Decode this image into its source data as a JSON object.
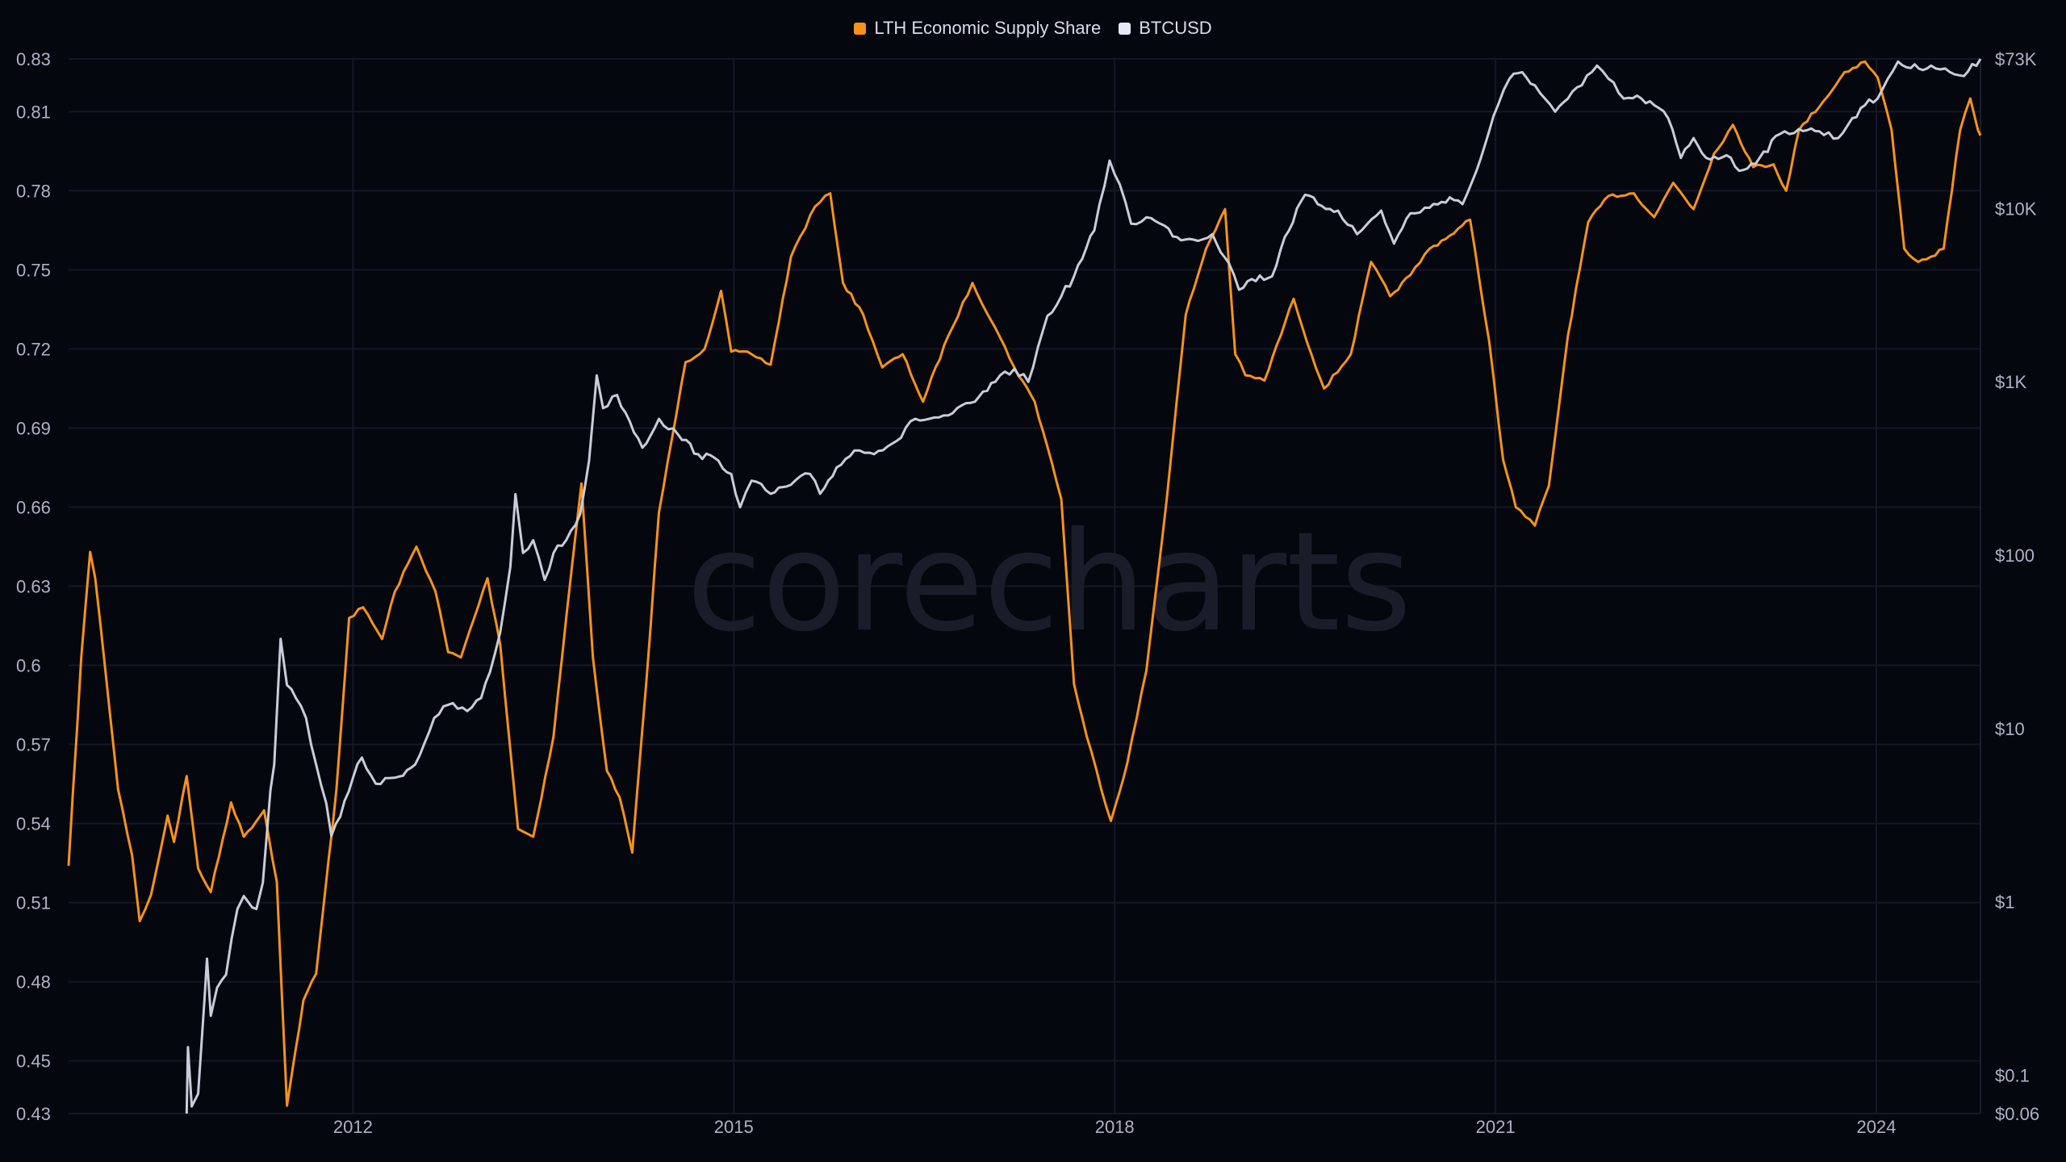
{
  "watermark": "corecharts",
  "chart_data": {
    "type": "line",
    "legend_placement": "top-center",
    "grid": true,
    "x_range": [
      2009.76,
      2024.82
    ],
    "x_ticks": [
      {
        "value": 2012,
        "label": "2012"
      },
      {
        "value": 2015,
        "label": "2015"
      },
      {
        "value": 2018,
        "label": "2018"
      },
      {
        "value": 2021,
        "label": "2021"
      },
      {
        "value": 2024,
        "label": "2024"
      }
    ],
    "y_left": {
      "range": [
        0.43,
        0.83
      ],
      "scale": "linear",
      "ticks": [
        "0.83",
        "0.81",
        "0.78",
        "0.75",
        "0.72",
        "0.69",
        "0.66",
        "0.63",
        "0.6",
        "0.57",
        "0.54",
        "0.51",
        "0.48",
        "0.45",
        "0.43"
      ]
    },
    "y_right": {
      "range": [
        0.06,
        73000
      ],
      "scale": "log",
      "ticks": [
        {
          "value": 73000,
          "label": "$73K"
        },
        {
          "value": 10000,
          "label": "$10K"
        },
        {
          "value": 1000,
          "label": "$1K"
        },
        {
          "value": 100,
          "label": "$100"
        },
        {
          "value": 10,
          "label": "$10"
        },
        {
          "value": 1,
          "label": "$1"
        },
        {
          "value": 0.1,
          "label": "$0.1"
        },
        {
          "value": 0.06,
          "label": "$0.06"
        }
      ]
    },
    "series": [
      {
        "name": "LTH Economic Supply Share",
        "axis": "left",
        "color": "#f7931a",
        "points": [
          [
            2009.76,
            0.524
          ],
          [
            2009.86,
            0.603
          ],
          [
            2009.93,
            0.643
          ],
          [
            2009.97,
            0.633
          ],
          [
            2010.05,
            0.598
          ],
          [
            2010.15,
            0.553
          ],
          [
            2010.26,
            0.528
          ],
          [
            2010.32,
            0.503
          ],
          [
            2010.41,
            0.513
          ],
          [
            2010.54,
            0.543
          ],
          [
            2010.59,
            0.533
          ],
          [
            2010.69,
            0.558
          ],
          [
            2010.78,
            0.523
          ],
          [
            2010.88,
            0.514
          ],
          [
            2011.04,
            0.548
          ],
          [
            2011.14,
            0.535
          ],
          [
            2011.3,
            0.545
          ],
          [
            2011.4,
            0.518
          ],
          [
            2011.48,
            0.433
          ],
          [
            2011.61,
            0.473
          ],
          [
            2011.71,
            0.483
          ],
          [
            2011.87,
            0.553
          ],
          [
            2011.97,
            0.618
          ],
          [
            2012.08,
            0.622
          ],
          [
            2012.23,
            0.61
          ],
          [
            2012.33,
            0.628
          ],
          [
            2012.5,
            0.645
          ],
          [
            2012.65,
            0.628
          ],
          [
            2012.75,
            0.605
          ],
          [
            2012.85,
            0.603
          ],
          [
            2013.06,
            0.633
          ],
          [
            2013.16,
            0.608
          ],
          [
            2013.3,
            0.538
          ],
          [
            2013.42,
            0.535
          ],
          [
            2013.58,
            0.573
          ],
          [
            2013.68,
            0.618
          ],
          [
            2013.8,
            0.669
          ],
          [
            2013.89,
            0.603
          ],
          [
            2014.0,
            0.56
          ],
          [
            2014.1,
            0.55
          ],
          [
            2014.2,
            0.529
          ],
          [
            2014.31,
            0.593
          ],
          [
            2014.41,
            0.658
          ],
          [
            2014.62,
            0.715
          ],
          [
            2014.77,
            0.72
          ],
          [
            2014.9,
            0.742
          ],
          [
            2014.98,
            0.719
          ],
          [
            2015.14,
            0.718
          ],
          [
            2015.29,
            0.714
          ],
          [
            2015.45,
            0.755
          ],
          [
            2015.64,
            0.774
          ],
          [
            2015.76,
            0.779
          ],
          [
            2015.86,
            0.745
          ],
          [
            2016.02,
            0.733
          ],
          [
            2016.17,
            0.713
          ],
          [
            2016.33,
            0.718
          ],
          [
            2016.49,
            0.7
          ],
          [
            2016.69,
            0.725
          ],
          [
            2016.88,
            0.745
          ],
          [
            2017.06,
            0.728
          ],
          [
            2017.21,
            0.713
          ],
          [
            2017.37,
            0.7
          ],
          [
            2017.47,
            0.683
          ],
          [
            2017.58,
            0.663
          ],
          [
            2017.68,
            0.593
          ],
          [
            2017.78,
            0.573
          ],
          [
            2017.97,
            0.541
          ],
          [
            2018.1,
            0.563
          ],
          [
            2018.25,
            0.598
          ],
          [
            2018.41,
            0.663
          ],
          [
            2018.56,
            0.733
          ],
          [
            2018.72,
            0.758
          ],
          [
            2018.87,
            0.773
          ],
          [
            2018.95,
            0.718
          ],
          [
            2019.03,
            0.71
          ],
          [
            2019.18,
            0.708
          ],
          [
            2019.41,
            0.739
          ],
          [
            2019.55,
            0.718
          ],
          [
            2019.65,
            0.705
          ],
          [
            2019.86,
            0.718
          ],
          [
            2020.02,
            0.753
          ],
          [
            2020.17,
            0.74
          ],
          [
            2020.33,
            0.748
          ],
          [
            2020.48,
            0.758
          ],
          [
            2020.64,
            0.763
          ],
          [
            2020.8,
            0.769
          ],
          [
            2020.95,
            0.723
          ],
          [
            2021.06,
            0.678
          ],
          [
            2021.16,
            0.66
          ],
          [
            2021.31,
            0.653
          ],
          [
            2021.42,
            0.668
          ],
          [
            2021.57,
            0.725
          ],
          [
            2021.73,
            0.768
          ],
          [
            2021.89,
            0.778
          ],
          [
            2022.09,
            0.779
          ],
          [
            2022.25,
            0.77
          ],
          [
            2022.4,
            0.783
          ],
          [
            2022.56,
            0.773
          ],
          [
            2022.72,
            0.794
          ],
          [
            2022.87,
            0.805
          ],
          [
            2023.03,
            0.789
          ],
          [
            2023.19,
            0.79
          ],
          [
            2023.29,
            0.78
          ],
          [
            2023.39,
            0.803
          ],
          [
            2023.65,
            0.818
          ],
          [
            2023.75,
            0.825
          ],
          [
            2023.91,
            0.829
          ],
          [
            2024.01,
            0.823
          ],
          [
            2024.12,
            0.803
          ],
          [
            2024.22,
            0.758
          ],
          [
            2024.33,
            0.753
          ],
          [
            2024.43,
            0.755
          ],
          [
            2024.53,
            0.758
          ],
          [
            2024.66,
            0.803
          ],
          [
            2024.74,
            0.815
          ],
          [
            2024.8,
            0.803
          ],
          [
            2024.82,
            0.801
          ]
        ]
      },
      {
        "name": "BTCUSD",
        "axis": "right",
        "color": "#c9cdd8",
        "points": [
          [
            2010.69,
            0.06
          ],
          [
            2010.7,
            0.145
          ],
          [
            2010.73,
            0.066
          ],
          [
            2010.78,
            0.078
          ],
          [
            2010.83,
            0.27
          ],
          [
            2010.85,
            0.47
          ],
          [
            2010.88,
            0.22
          ],
          [
            2010.93,
            0.32
          ],
          [
            2011.0,
            0.38
          ],
          [
            2011.09,
            0.91
          ],
          [
            2011.14,
            1.08
          ],
          [
            2011.24,
            0.91
          ],
          [
            2011.29,
            1.29
          ],
          [
            2011.35,
            4.4
          ],
          [
            2011.38,
            6.2
          ],
          [
            2011.43,
            32.9
          ],
          [
            2011.48,
            17.8
          ],
          [
            2011.55,
            15.0
          ],
          [
            2011.63,
            11.5
          ],
          [
            2011.71,
            6.2
          ],
          [
            2011.79,
            3.7
          ],
          [
            2011.83,
            2.4
          ],
          [
            2011.9,
            3.1
          ],
          [
            2012.0,
            5.2
          ],
          [
            2012.07,
            6.8
          ],
          [
            2012.18,
            4.8
          ],
          [
            2012.33,
            5.2
          ],
          [
            2012.49,
            6.2
          ],
          [
            2012.64,
            11.5
          ],
          [
            2012.75,
            13.7
          ],
          [
            2012.9,
            12.6
          ],
          [
            2013.01,
            15.0
          ],
          [
            2013.08,
            21.2
          ],
          [
            2013.16,
            35.9
          ],
          [
            2013.24,
            86
          ],
          [
            2013.28,
            225
          ],
          [
            2013.34,
            103
          ],
          [
            2013.42,
            122
          ],
          [
            2013.51,
            72
          ],
          [
            2013.58,
            103
          ],
          [
            2013.68,
            122
          ],
          [
            2013.79,
            173
          ],
          [
            2013.86,
            350
          ],
          [
            2013.92,
            1090
          ],
          [
            2013.97,
            705
          ],
          [
            2014.08,
            840
          ],
          [
            2014.18,
            592
          ],
          [
            2014.28,
            417
          ],
          [
            2014.41,
            612
          ],
          [
            2014.56,
            497
          ],
          [
            2014.72,
            382
          ],
          [
            2014.88,
            350
          ],
          [
            2014.98,
            294
          ],
          [
            2015.05,
            189
          ],
          [
            2015.14,
            269
          ],
          [
            2015.29,
            226
          ],
          [
            2015.45,
            255
          ],
          [
            2015.6,
            294
          ],
          [
            2015.68,
            226
          ],
          [
            2015.81,
            321
          ],
          [
            2015.95,
            402
          ],
          [
            2016.07,
            390
          ],
          [
            2016.28,
            455
          ],
          [
            2016.43,
            612
          ],
          [
            2016.54,
            612
          ],
          [
            2016.69,
            640
          ],
          [
            2016.9,
            769
          ],
          [
            2017.06,
            1000
          ],
          [
            2017.21,
            1190
          ],
          [
            2017.32,
            1000
          ],
          [
            2017.47,
            2400
          ],
          [
            2017.58,
            3120
          ],
          [
            2017.68,
            4060
          ],
          [
            2017.84,
            7480
          ],
          [
            2017.96,
            18900
          ],
          [
            2018.04,
            13800
          ],
          [
            2018.13,
            8170
          ],
          [
            2018.25,
            8910
          ],
          [
            2018.36,
            8170
          ],
          [
            2018.49,
            6850
          ],
          [
            2018.62,
            6620
          ],
          [
            2018.77,
            7110
          ],
          [
            2018.9,
            4830
          ],
          [
            2018.98,
            3400
          ],
          [
            2019.08,
            3920
          ],
          [
            2019.24,
            4060
          ],
          [
            2019.34,
            6850
          ],
          [
            2019.5,
            12000
          ],
          [
            2019.6,
            10600
          ],
          [
            2019.76,
            9730
          ],
          [
            2019.91,
            7110
          ],
          [
            2020.1,
            9730
          ],
          [
            2020.2,
            6280
          ],
          [
            2020.33,
            9400
          ],
          [
            2020.48,
            10100
          ],
          [
            2020.64,
            11600
          ],
          [
            2020.74,
            10600
          ],
          [
            2020.85,
            16500
          ],
          [
            2020.95,
            27900
          ],
          [
            2021.02,
            39500
          ],
          [
            2021.11,
            56100
          ],
          [
            2021.21,
            61200
          ],
          [
            2021.31,
            51400
          ],
          [
            2021.39,
            43100
          ],
          [
            2021.47,
            36200
          ],
          [
            2021.57,
            43100
          ],
          [
            2021.68,
            51400
          ],
          [
            2021.8,
            66800
          ],
          [
            2021.89,
            56100
          ],
          [
            2022.01,
            43100
          ],
          [
            2022.15,
            43100
          ],
          [
            2022.25,
            39500
          ],
          [
            2022.36,
            33200
          ],
          [
            2022.46,
            19600
          ],
          [
            2022.56,
            25500
          ],
          [
            2022.66,
            19600
          ],
          [
            2022.82,
            20300
          ],
          [
            2022.92,
            16500
          ],
          [
            2023.08,
            19600
          ],
          [
            2023.24,
            26900
          ],
          [
            2023.39,
            28800
          ],
          [
            2023.55,
            27900
          ],
          [
            2023.7,
            25500
          ],
          [
            2023.81,
            33200
          ],
          [
            2023.91,
            39500
          ],
          [
            2024.01,
            43100
          ],
          [
            2024.09,
            56100
          ],
          [
            2024.17,
            70500
          ],
          [
            2024.27,
            64600
          ],
          [
            2024.43,
            66800
          ],
          [
            2024.58,
            61200
          ],
          [
            2024.69,
            58100
          ],
          [
            2024.82,
            73000
          ]
        ]
      }
    ]
  }
}
